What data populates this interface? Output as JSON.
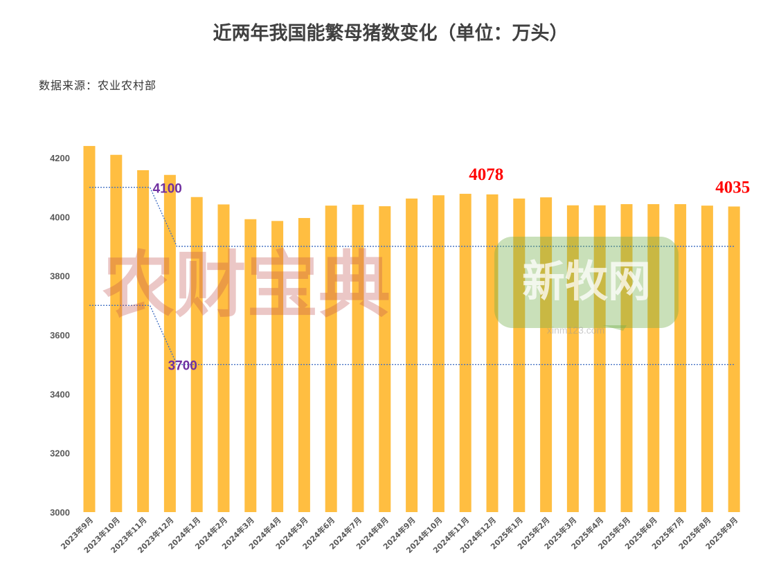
{
  "title": "近两年我国能繁母猪数变化（单位：万头）",
  "source": "数据来源：农业农村部",
  "watermarks": {
    "left": "农财宝典",
    "right": "新牧网",
    "right_url": "xinm123.com"
  },
  "colors": {
    "bar": "#ffbe41",
    "reference_line": "#4472c4",
    "reference_label": "#7030a0",
    "data_label": "#ff0000"
  },
  "chart_data": {
    "type": "bar",
    "title": "近两年我国能繁母猪数变化（单位：万头）",
    "categories": [
      "2023年9月",
      "2023年10月",
      "2023年11月",
      "2023年12月",
      "2024年1月",
      "2024年2月",
      "2024年3月",
      "2024年4月",
      "2024年5月",
      "2024年6月",
      "2024年7月",
      "2024年8月",
      "2024年9月",
      "2024年10月",
      "2024年11月",
      "2024年12月",
      "2025年1月",
      "2025年2月",
      "2025年3月",
      "2025年4月",
      "2025年5月",
      "2025年6月",
      "2025年7月",
      "2025年8月",
      "2025年9月"
    ],
    "values": [
      4240,
      4210,
      4158,
      4142,
      4067,
      4042,
      3992,
      3986,
      3996,
      4038,
      4041,
      4036,
      4062,
      4073,
      4078,
      4076,
      4062,
      4066,
      4039,
      4039,
      4043,
      4043,
      4043,
      4038,
      4035
    ],
    "ylim": [
      3000,
      4200
    ],
    "yticks": [
      3000,
      3200,
      3400,
      3600,
      3800,
      4000,
      4200
    ],
    "grid": false,
    "legend": "none",
    "reference_lines": [
      {
        "label": "4100",
        "value": 4100
      },
      {
        "label": "3700",
        "value": 3700
      }
    ],
    "annotations": [
      {
        "category": "2024年11月",
        "text": "4078"
      },
      {
        "category": "2025年9月",
        "text": "4035"
      }
    ]
  }
}
